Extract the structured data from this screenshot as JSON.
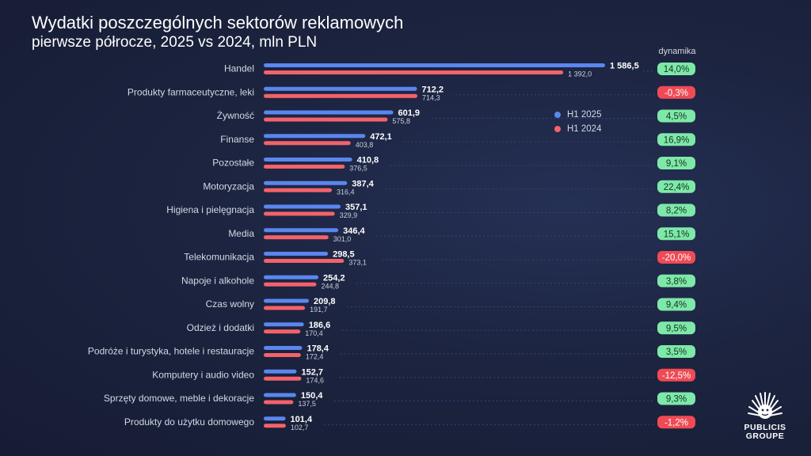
{
  "header": {
    "title": "Wydatki poszczególnych sektorów reklamowych",
    "subtitle": "pierwsze półrocze, 2025 vs 2024, mln PLN",
    "dynamics_label": "dynamika"
  },
  "logo": {
    "line1": "PUBLICIS",
    "line2": "GROUPE"
  },
  "colors": {
    "h1_2025": "#5b86ee",
    "h1_2024": "#f4626a",
    "positive_badge": "#7ee8a8",
    "negative_badge": "#f04a55"
  },
  "chart_data": {
    "type": "bar",
    "orientation": "horizontal",
    "title": "Wydatki poszczególnych sektorów reklamowych",
    "subtitle": "pierwsze półrocze, 2025 vs 2024, mln PLN",
    "legend_position": "right",
    "categories": [
      "Handel",
      "Produkty farmaceutyczne, leki",
      "Żywność",
      "Finanse",
      "Pozostałe",
      "Motoryzacja",
      "Higiena i pielęgnacja",
      "Media",
      "Telekomunikacja",
      "Napoje i alkohole",
      "Czas wolny",
      "Odzież i dodatki",
      "Podróże i turystyka, hotele i restauracje",
      "Komputery i audio video",
      "Sprzęty domowe, meble i dekoracje",
      "Produkty do użytku domowego"
    ],
    "series": [
      {
        "name": "H1 2025",
        "values": [
          1586.5,
          712.2,
          601.9,
          472.1,
          410.8,
          387.4,
          357.1,
          346.4,
          298.5,
          254.2,
          209.8,
          186.6,
          178.4,
          152.7,
          150.4,
          101.4
        ],
        "labels": [
          "1 586,5",
          "712,2",
          "601,9",
          "472,1",
          "410,8",
          "387,4",
          "357,1",
          "346,4",
          "298,5",
          "254,2",
          "209,8",
          "186,6",
          "178,4",
          "152,7",
          "150,4",
          "101,4"
        ]
      },
      {
        "name": "H1 2024",
        "values": [
          1392.0,
          714.3,
          575.8,
          403.8,
          376.5,
          316.4,
          329.9,
          301.0,
          373.1,
          244.8,
          191.7,
          170.4,
          172.4,
          174.6,
          137.5,
          102.7
        ],
        "labels": [
          "1 392,0",
          "714,3",
          "575,8",
          "403,8",
          "376,5",
          "316,4",
          "329,9",
          "301,0",
          "373,1",
          "244,8",
          "191,7",
          "170,4",
          "172,4",
          "174,6",
          "137,5",
          "102,7"
        ]
      }
    ],
    "dynamics": [
      "14,0%",
      "-0,3%",
      "4,5%",
      "16,9%",
      "9,1%",
      "22,4%",
      "8,2%",
      "15,1%",
      "-20,0%",
      "3,8%",
      "9,4%",
      "9,5%",
      "3,5%",
      "-12,5%",
      "9,3%",
      "-1,2%"
    ],
    "dynamics_values": [
      14.0,
      -0.3,
      4.5,
      16.9,
      9.1,
      22.4,
      8.2,
      15.1,
      -20.0,
      3.8,
      9.4,
      9.5,
      3.5,
      -12.5,
      9.3,
      -1.2
    ],
    "xlim": [
      0,
      1586.5
    ],
    "grid": false
  }
}
